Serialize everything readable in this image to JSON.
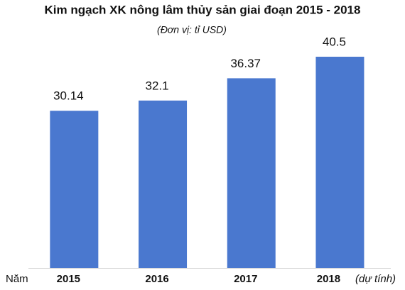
{
  "chart_data": {
    "type": "bar",
    "title": "Kim ngạch XK nông lâm thủy sản giai đoạn 2015 - 2018",
    "subtitle": "(Đơn vị: tỉ USD)",
    "x_label": "Năm",
    "categories": [
      "2015",
      "2016",
      "2017",
      "2018"
    ],
    "values": [
      30.14,
      32.1,
      36.37,
      40.5
    ],
    "annotation": "(dự tính)",
    "color": "#4a78cf"
  }
}
